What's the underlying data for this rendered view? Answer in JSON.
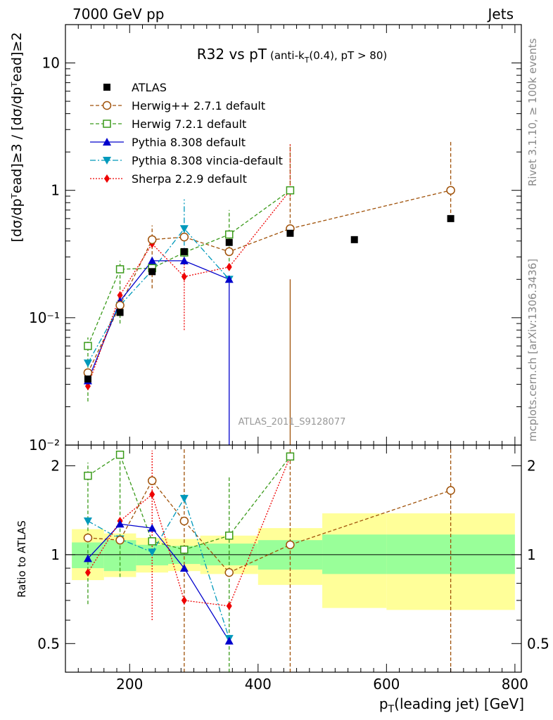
{
  "header": {
    "left": "7000 GeV pp",
    "right": "Jets"
  },
  "side_labels": {
    "top": "Rivet 3.1.10, ≥ 100k events",
    "bottom": "mcplots.cern.ch [arXiv:1306.3436]"
  },
  "watermark": "ATLAS_2011_S9128077",
  "chart_data": [
    {
      "type": "scatter",
      "panel": "main",
      "title_main": "R32 vs pT",
      "title_sub_pre": "(anti-k",
      "title_sub_sub": "T",
      "title_sub_post": "(0.4), pT > 80)",
      "ylabel": "[dσ/dpᵀead]≥3 / [dσ/dpᵀead]≥2",
      "yscale": "log",
      "ylim": [
        0.01,
        20
      ],
      "xlim": [
        100,
        810
      ],
      "yticks": [
        {
          "v": 10,
          "t": "10"
        },
        {
          "v": 1,
          "t": "1"
        },
        {
          "v": 0.1,
          "t": "10⁻¹"
        },
        {
          "v": 0.01,
          "t": "10⁻²"
        }
      ],
      "series": [
        {
          "name": "ATLAS",
          "color": "#000000",
          "marker": "square-filled",
          "dash": "",
          "line": false,
          "x": [
            135,
            185,
            235,
            285,
            355,
            450,
            550,
            700
          ],
          "y": [
            0.033,
            0.11,
            0.23,
            0.33,
            0.39,
            0.46,
            0.41,
            0.6
          ]
        },
        {
          "name": "Herwig++ 2.7.1 default",
          "color": "#a0520a",
          "marker": "circle-open",
          "dash": "5,3",
          "x": [
            135,
            185,
            235,
            285,
            355,
            450,
            700
          ],
          "y": [
            0.037,
            0.125,
            0.41,
            0.43,
            0.33,
            0.5,
            1.0
          ]
        },
        {
          "name": "Herwig 7.2.1 default",
          "color": "#3a9a1a",
          "marker": "square-open",
          "dash": "5,3",
          "x": [
            135,
            185,
            235,
            285,
            355,
            450
          ],
          "y": [
            0.06,
            0.24,
            0.245,
            0.325,
            0.45,
            1.0
          ]
        },
        {
          "name": "Pythia 8.308 default",
          "color": "#0000cc",
          "marker": "triangle-up",
          "dash": "",
          "x": [
            135,
            185,
            235,
            285,
            355
          ],
          "y": [
            0.032,
            0.135,
            0.28,
            0.28,
            0.2
          ]
        },
        {
          "name": "Pythia 8.308 vincia-default",
          "color": "#0099bb",
          "marker": "triangle-down",
          "dash": "8,3,2,3",
          "x": [
            135,
            185,
            235,
            285,
            355
          ],
          "y": [
            0.044,
            0.125,
            0.235,
            0.5,
            0.2
          ]
        },
        {
          "name": "Sherpa 2.2.9 default",
          "color": "#ee0000",
          "marker": "diamond",
          "dash": "2,2",
          "x": [
            135,
            185,
            235,
            285,
            355,
            450
          ],
          "y": [
            0.029,
            0.15,
            0.38,
            0.21,
            0.25,
            1.0
          ]
        }
      ]
    },
    {
      "type": "scatter",
      "panel": "ratio",
      "ylabel": "Ratio to ATLAS",
      "xlabel": "p_T(leading jet) [GeV]",
      "yscale": "log",
      "ylim": [
        0.4,
        2.35
      ],
      "xlim": [
        100,
        810
      ],
      "xticks": [
        200,
        400,
        600,
        800
      ],
      "yticks": [
        {
          "v": 2,
          "t": "2"
        },
        {
          "v": 1,
          "t": "1"
        },
        {
          "v": 0.5,
          "t": "0.5"
        }
      ],
      "bands": [
        {
          "x": [
            110,
            160
          ],
          "inner": [
            0.9,
            1.1
          ],
          "outer": [
            0.82,
            1.22
          ]
        },
        {
          "x": [
            160,
            210
          ],
          "inner": [
            0.88,
            1.12
          ],
          "outer": [
            0.84,
            1.18
          ]
        },
        {
          "x": [
            210,
            260
          ],
          "inner": [
            0.92,
            1.08
          ],
          "outer": [
            0.87,
            1.14
          ]
        },
        {
          "x": [
            260,
            310
          ],
          "inner": [
            0.93,
            1.07
          ],
          "outer": [
            0.88,
            1.13
          ]
        },
        {
          "x": [
            310,
            400
          ],
          "inner": [
            0.92,
            1.09
          ],
          "outer": [
            0.86,
            1.16
          ]
        },
        {
          "x": [
            400,
            500
          ],
          "inner": [
            0.89,
            1.12
          ],
          "outer": [
            0.79,
            1.23
          ]
        },
        {
          "x": [
            500,
            600
          ],
          "inner": [
            0.86,
            1.17
          ],
          "outer": [
            0.66,
            1.38
          ]
        },
        {
          "x": [
            600,
            800
          ],
          "inner": [
            0.86,
            1.17
          ],
          "outer": [
            0.65,
            1.38
          ]
        }
      ],
      "series": [
        {
          "name": "Herwig++ 2.7.1 default",
          "x": [
            135,
            185,
            235,
            285,
            355,
            450,
            700
          ],
          "y": [
            1.14,
            1.12,
            1.78,
            1.3,
            0.87,
            1.08,
            1.65
          ]
        },
        {
          "name": "Herwig 7.2.1 default",
          "x": [
            135,
            185,
            235,
            285,
            355,
            450
          ],
          "y": [
            1.85,
            2.18,
            1.11,
            1.04,
            1.16,
            2.15
          ]
        },
        {
          "name": "Pythia 8.308 default",
          "x": [
            135,
            185,
            235,
            285,
            355
          ],
          "y": [
            0.97,
            1.27,
            1.23,
            0.9,
            0.51
          ]
        },
        {
          "name": "Pythia 8.308 vincia-default",
          "x": [
            135,
            185,
            235,
            285,
            355
          ],
          "y": [
            1.3,
            1.13,
            1.02,
            1.55,
            0.52
          ]
        },
        {
          "name": "Sherpa 2.2.9 default",
          "x": [
            135,
            185,
            235,
            285,
            355,
            450
          ],
          "y": [
            0.87,
            1.3,
            1.6,
            0.7,
            0.67,
            2.15
          ]
        }
      ]
    }
  ]
}
